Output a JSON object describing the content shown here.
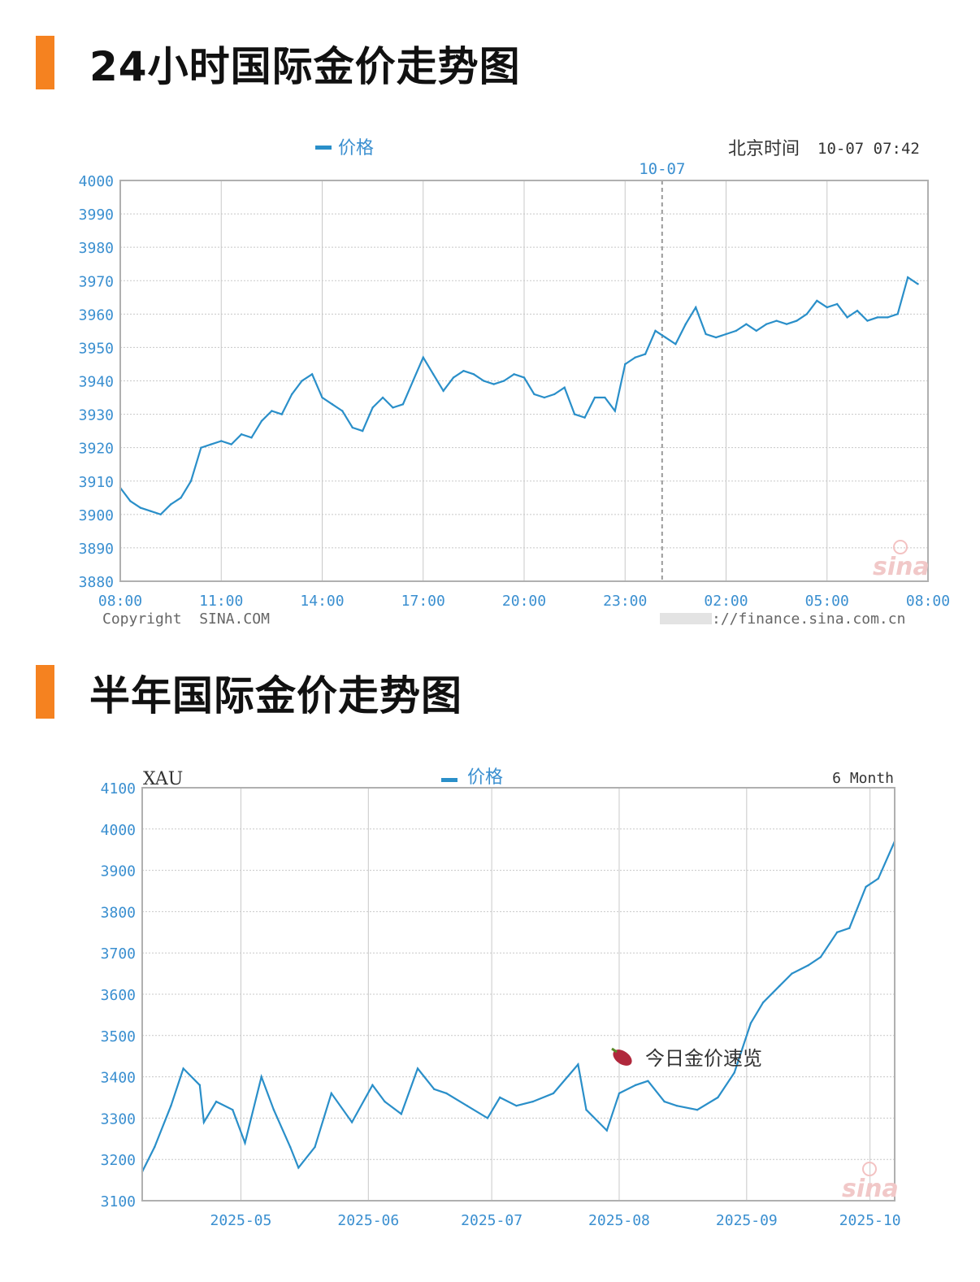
{
  "section1": {
    "title": "24小时国际金价走势图"
  },
  "section2": {
    "title": "半年国际金价走势图"
  },
  "overlay": {
    "label": "今日金价速览"
  },
  "colors": {
    "accent": "#f58220",
    "line": "#2a8fc9",
    "axis_text": "#3a8fd0",
    "grid": "#c8c8c8"
  },
  "chart_data": [
    {
      "type": "line",
      "legend": "价格",
      "header_label": "北京时间",
      "header_time": "10-07 07:42",
      "date_marker": "10-07",
      "copyright": "Copyright  SINA.COM",
      "source_url": "://finance.sina.com.cn",
      "logo": "sina",
      "x_ticks": [
        "08:00",
        "11:00",
        "14:00",
        "17:00",
        "20:00",
        "23:00",
        "02:00",
        "05:00",
        "08:00"
      ],
      "y_ticks": [
        4000,
        3990,
        3980,
        3970,
        3960,
        3950,
        3940,
        3930,
        3920,
        3910,
        3900,
        3890,
        3880
      ],
      "ylim": [
        3880,
        4000
      ],
      "xlim": [
        0,
        24
      ],
      "marker_x": 16.1,
      "x": [
        0,
        0.3,
        0.6,
        0.9,
        1.2,
        1.5,
        1.8,
        2.1,
        2.4,
        2.7,
        3.0,
        3.3,
        3.6,
        3.9,
        4.2,
        4.5,
        4.8,
        5.1,
        5.4,
        5.7,
        6.0,
        6.3,
        6.6,
        6.9,
        7.2,
        7.5,
        7.8,
        8.1,
        8.4,
        8.7,
        9.0,
        9.3,
        9.6,
        9.9,
        10.2,
        10.5,
        10.8,
        11.1,
        11.4,
        11.7,
        12.0,
        12.3,
        12.6,
        12.9,
        13.2,
        13.5,
        13.8,
        14.1,
        14.4,
        14.7,
        15.0,
        15.3,
        15.6,
        15.9,
        16.2,
        16.5,
        16.8,
        17.1,
        17.4,
        17.7,
        18.0,
        18.3,
        18.6,
        18.9,
        19.2,
        19.5,
        19.8,
        20.1,
        20.4,
        20.7,
        21.0,
        21.3,
        21.6,
        21.9,
        22.2,
        22.5,
        22.8,
        23.1,
        23.4,
        23.7
      ],
      "y": [
        3908,
        3904,
        3902,
        3901,
        3900,
        3903,
        3905,
        3910,
        3920,
        3921,
        3922,
        3921,
        3924,
        3923,
        3928,
        3931,
        3930,
        3936,
        3940,
        3942,
        3935,
        3933,
        3931,
        3926,
        3925,
        3932,
        3935,
        3932,
        3933,
        3940,
        3947,
        3942,
        3937,
        3941,
        3943,
        3942,
        3940,
        3939,
        3940,
        3942,
        3941,
        3936,
        3935,
        3936,
        3938,
        3930,
        3929,
        3935,
        3935,
        3931,
        3945,
        3947,
        3948,
        3955,
        3953,
        3951,
        3957,
        3962,
        3954,
        3953,
        3954,
        3955,
        3957,
        3955,
        3957,
        3958,
        3957,
        3958,
        3960,
        3964,
        3962,
        3963,
        3959,
        3961,
        3958,
        3959,
        3959,
        3960,
        3971,
        3969
      ]
    },
    {
      "type": "line",
      "symbol": "XAU",
      "legend": "价格",
      "period": "6 Month",
      "logo": "sina",
      "x_ticks": [
        "2025-05",
        "2025-06",
        "2025-07",
        "2025-08",
        "2025-09",
        "2025-10"
      ],
      "y_ticks": [
        4100,
        4000,
        3900,
        3800,
        3700,
        3600,
        3500,
        3400,
        3300,
        3200,
        3100
      ],
      "ylim": [
        3100,
        4100
      ],
      "x_range": [
        "2025-04-07",
        "2025-10-07"
      ],
      "x": [
        "2025-04-07",
        "2025-04-10",
        "2025-04-14",
        "2025-04-17",
        "2025-04-21",
        "2025-04-22",
        "2025-04-25",
        "2025-04-29",
        "2025-05-02",
        "2025-05-06",
        "2025-05-09",
        "2025-05-13",
        "2025-05-15",
        "2025-05-19",
        "2025-05-23",
        "2025-05-28",
        "2025-06-02",
        "2025-06-05",
        "2025-06-09",
        "2025-06-13",
        "2025-06-17",
        "2025-06-20",
        "2025-06-25",
        "2025-06-30",
        "2025-07-03",
        "2025-07-07",
        "2025-07-11",
        "2025-07-16",
        "2025-07-22",
        "2025-07-24",
        "2025-07-29",
        "2025-08-01",
        "2025-08-05",
        "2025-08-08",
        "2025-08-12",
        "2025-08-15",
        "2025-08-20",
        "2025-08-25",
        "2025-08-29",
        "2025-09-02",
        "2025-09-05",
        "2025-09-09",
        "2025-09-12",
        "2025-09-16",
        "2025-09-19",
        "2025-09-23",
        "2025-09-26",
        "2025-09-30",
        "2025-10-03",
        "2025-10-07"
      ],
      "y": [
        3170,
        3230,
        3330,
        3420,
        3380,
        3290,
        3340,
        3320,
        3240,
        3400,
        3320,
        3230,
        3180,
        3230,
        3360,
        3290,
        3380,
        3340,
        3310,
        3420,
        3370,
        3360,
        3330,
        3300,
        3350,
        3330,
        3340,
        3360,
        3430,
        3320,
        3270,
        3360,
        3380,
        3390,
        3340,
        3330,
        3320,
        3350,
        3410,
        3530,
        3580,
        3620,
        3650,
        3670,
        3690,
        3750,
        3760,
        3860,
        3880,
        3970
      ]
    }
  ]
}
